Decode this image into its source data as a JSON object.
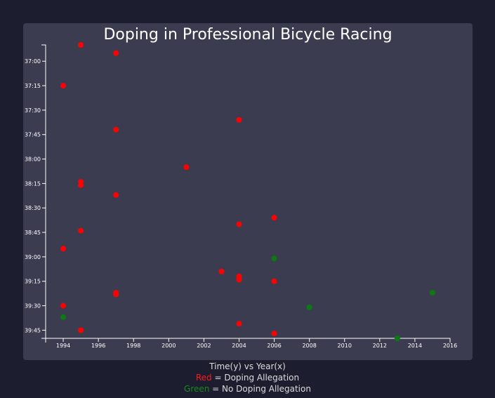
{
  "chart_data": {
    "type": "scatter",
    "title": "Doping in Professional Bicycle Racing",
    "xlabel": "Time(y) vs Year(x)",
    "xlim": [
      1993,
      2016
    ],
    "ylim_seconds": [
      2210,
      2390
    ],
    "x_ticks": [
      1994,
      1996,
      1998,
      2000,
      2002,
      2004,
      2006,
      2008,
      2010,
      2012,
      2014,
      2016
    ],
    "y_ticks": [
      "37:00",
      "37:15",
      "37:30",
      "37:45",
      "38:00",
      "38:15",
      "38:30",
      "38:45",
      "39:00",
      "39:15",
      "39:30",
      "39:45"
    ],
    "legend": [
      {
        "color_word": "Red",
        "text": " = Doping Allegation",
        "color": "#ff1a1a"
      },
      {
        "color_word": "Green",
        "text": " = No Doping Allegation",
        "color": "#1a8a1a"
      }
    ],
    "series": [
      {
        "doping": true,
        "color": "#ff0000",
        "points": [
          {
            "year": 1995,
            "time": "36:50"
          },
          {
            "year": 1997,
            "time": "36:55"
          },
          {
            "year": 1994,
            "time": "37:15"
          },
          {
            "year": 2004,
            "time": "37:36"
          },
          {
            "year": 1997,
            "time": "37:42"
          },
          {
            "year": 2001,
            "time": "38:05"
          },
          {
            "year": 1995,
            "time": "38:14"
          },
          {
            "year": 1995,
            "time": "38:16"
          },
          {
            "year": 1997,
            "time": "38:22"
          },
          {
            "year": 2006,
            "time": "38:36"
          },
          {
            "year": 2004,
            "time": "38:40"
          },
          {
            "year": 1995,
            "time": "38:44"
          },
          {
            "year": 1994,
            "time": "38:55"
          },
          {
            "year": 2003,
            "time": "39:09"
          },
          {
            "year": 2004,
            "time": "39:12"
          },
          {
            "year": 2004,
            "time": "39:14"
          },
          {
            "year": 2006,
            "time": "39:15"
          },
          {
            "year": 1997,
            "time": "39:22"
          },
          {
            "year": 1997,
            "time": "39:23"
          },
          {
            "year": 1994,
            "time": "39:30"
          },
          {
            "year": 2004,
            "time": "39:41"
          },
          {
            "year": 1995,
            "time": "39:45"
          },
          {
            "year": 2006,
            "time": "39:47"
          }
        ]
      },
      {
        "doping": false,
        "color": "#0a7a12",
        "points": [
          {
            "year": 2006,
            "time": "39:01"
          },
          {
            "year": 2015,
            "time": "39:22"
          },
          {
            "year": 2008,
            "time": "39:31"
          },
          {
            "year": 1994,
            "time": "39:37"
          },
          {
            "year": 2013,
            "time": "39:50"
          }
        ]
      }
    ]
  }
}
